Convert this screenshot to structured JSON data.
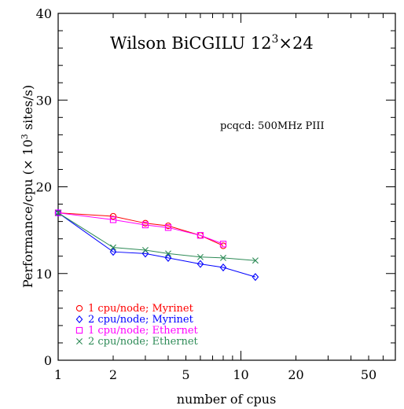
{
  "chart_data": {
    "type": "line",
    "title": "Wilson BiCGILU 12",
    "title_sup": "3",
    "title_suffix": "×24",
    "annotation": "pcqcd: 500MHz PIII",
    "xlabel": "number of cpus",
    "ylabel_prefix": "Performance/cpu (× 10",
    "ylabel_sup": "3",
    "ylabel_suffix": " sites/s)",
    "x_scale": "log",
    "xlim": [
      1,
      70
    ],
    "ylim": [
      0,
      40
    ],
    "x_tick_labels": [
      "1",
      "2",
      "5",
      "10",
      "20",
      "50"
    ],
    "y_tick_labels": [
      "0",
      "10",
      "20",
      "30",
      "40"
    ],
    "legend_position": "bottom-left",
    "series": [
      {
        "name": "1 cpu/node; Myrinet",
        "color": "#ff0000",
        "marker": "circle",
        "x": [
          1,
          2,
          3,
          4,
          6,
          8
        ],
        "y": [
          17.0,
          16.6,
          15.8,
          15.5,
          14.4,
          13.2
        ]
      },
      {
        "name": "2 cpu/node; Myrinet",
        "color": "#0000ff",
        "marker": "diamond",
        "x": [
          1,
          2,
          3,
          4,
          6,
          8,
          12
        ],
        "y": [
          17.0,
          12.5,
          12.3,
          11.8,
          11.1,
          10.7,
          9.6
        ]
      },
      {
        "name": "1 cpu/node; Ethernet",
        "color": "#ff00ff",
        "marker": "square",
        "x": [
          1,
          2,
          3,
          4,
          6,
          8
        ],
        "y": [
          17.0,
          16.2,
          15.6,
          15.3,
          14.4,
          13.4
        ]
      },
      {
        "name": "2 cpu/node; Ethernet",
        "color": "#2e8b57",
        "marker": "cross",
        "x": [
          1,
          2,
          3,
          4,
          6,
          8,
          12
        ],
        "y": [
          17.0,
          13.0,
          12.7,
          12.3,
          11.9,
          11.8,
          11.5
        ]
      }
    ]
  }
}
